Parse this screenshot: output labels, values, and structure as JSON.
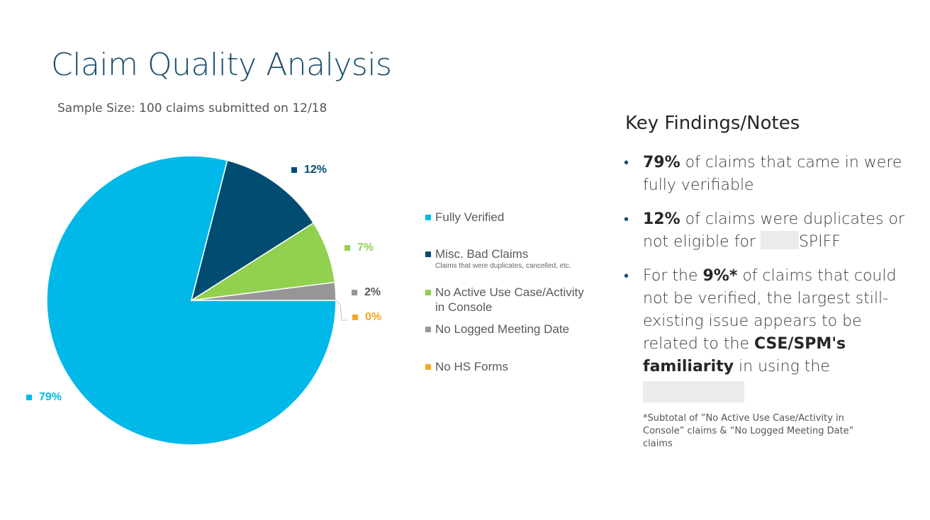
{
  "title": "Claim Quality Analysis",
  "subtitle": "Sample Size: 100 claims submitted on 12/18",
  "chart_data": {
    "type": "pie",
    "categories": [
      "Fully Verified",
      "Misc. Bad Claims",
      "No Active Use Case/Activity in Console",
      "No Logged Meeting Date",
      "No HS Forms"
    ],
    "values": [
      79,
      12,
      7,
      2,
      0
    ],
    "data_labels": [
      "79%",
      "12%",
      "7%",
      "2%",
      "0%"
    ],
    "colors": [
      "#00b9e8",
      "#004d71",
      "#92d050",
      "#969696",
      "#f5a623"
    ],
    "legend": {
      "placement": "right",
      "items": [
        {
          "label": "Fully Verified",
          "note": ""
        },
        {
          "label": "Misc. Bad Claims",
          "note": "Claims that were duplicates, cancelled, etc."
        },
        {
          "label": "No Active Use Case/Activity in Console",
          "note": ""
        },
        {
          "label": "No Logged Meeting Date",
          "note": ""
        },
        {
          "label": "No HS Forms",
          "note": ""
        }
      ]
    }
  },
  "findings": {
    "title": "Key Findings/Notes",
    "bullets": [
      {
        "bold1": "79%",
        "text1": " of claims that came in were fully verifiable"
      },
      {
        "bold1": "12%",
        "text1": " of claims were duplicates or not eligible for ",
        "text2": "SPIFF"
      },
      {
        "text0": "For the ",
        "bold1": "9%*",
        "text1": " of claims that could not be verified, the largest still-existing issue appears to be related to the ",
        "bold2": "CSE/SPM's familiarity",
        "text2": " in using the"
      }
    ],
    "footnote": "*Subtotal of ”No Active Use Case/Activity in Console” claims & “No Logged Meeting Date” claims"
  }
}
